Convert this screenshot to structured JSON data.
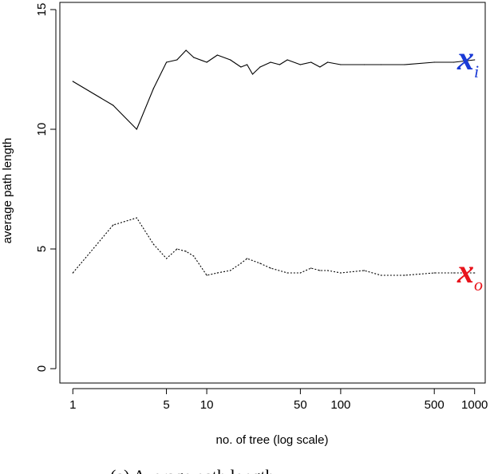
{
  "chart_data": {
    "type": "line",
    "title": "",
    "xlabel": "no. of tree (log scale)",
    "ylabel": "average path length",
    "x_scale": "log",
    "xlim": [
      0.8,
      1200
    ],
    "ylim": [
      -0.6,
      15.3
    ],
    "x_ticks": [
      1,
      5,
      10,
      50,
      100,
      500,
      1000
    ],
    "x_tick_labels": [
      "1",
      "5",
      "10",
      "50",
      "100",
      "500",
      "1000"
    ],
    "y_ticks": [
      0,
      5,
      10,
      15
    ],
    "y_tick_labels": [
      "0",
      "5",
      "10",
      "15"
    ],
    "grid": false,
    "series": [
      {
        "name": "x_i",
        "name_main": "x",
        "name_sub": "i",
        "label_color": "#1a3ad6",
        "line_style": "solid",
        "color": "#000000",
        "x": [
          1,
          2,
          3,
          4,
          5,
          6,
          7,
          8,
          10,
          12,
          15,
          18,
          20,
          22,
          25,
          30,
          35,
          40,
          50,
          60,
          70,
          80,
          100,
          150,
          200,
          300,
          500,
          700,
          1000
        ],
        "y": [
          12.0,
          11.0,
          10.0,
          11.7,
          12.8,
          12.9,
          13.3,
          13.0,
          12.8,
          13.1,
          12.9,
          12.6,
          12.7,
          12.3,
          12.6,
          12.8,
          12.7,
          12.9,
          12.7,
          12.8,
          12.6,
          12.8,
          12.7,
          12.7,
          12.7,
          12.7,
          12.8,
          12.8,
          12.9
        ]
      },
      {
        "name": "x_o",
        "name_main": "x",
        "name_sub": "o",
        "label_color": "#e8141c",
        "line_style": "dotted",
        "color": "#000000",
        "x": [
          1,
          2,
          3,
          4,
          5,
          6,
          7,
          8,
          10,
          12,
          15,
          18,
          20,
          25,
          30,
          40,
          50,
          60,
          70,
          80,
          100,
          150,
          200,
          300,
          500,
          700,
          1000
        ],
        "y": [
          4.0,
          6.0,
          6.3,
          5.2,
          4.6,
          5.0,
          4.9,
          4.7,
          3.9,
          4.0,
          4.1,
          4.4,
          4.6,
          4.4,
          4.2,
          4.0,
          4.0,
          4.2,
          4.1,
          4.1,
          4.0,
          4.1,
          3.9,
          3.9,
          4.0,
          4.0,
          4.0
        ]
      }
    ]
  },
  "caption": "(a) Average path length"
}
